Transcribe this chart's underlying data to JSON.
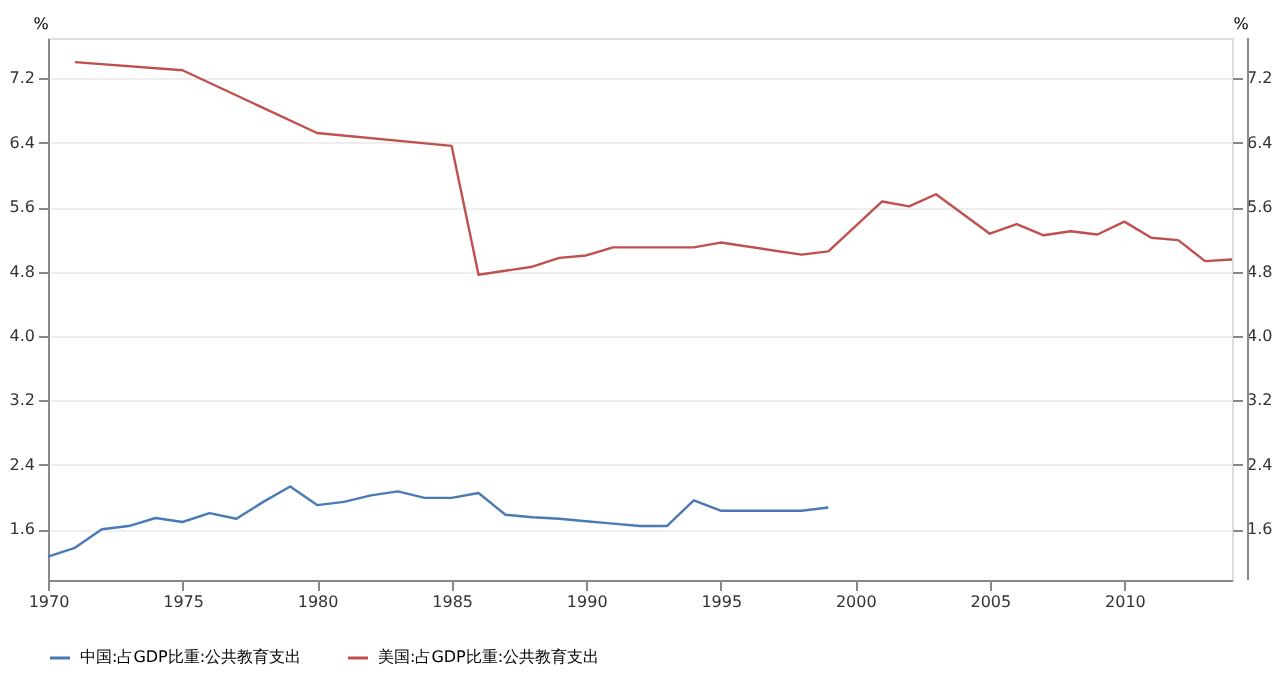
{
  "chart_data": {
    "type": "line",
    "ylabel": "%",
    "y2label": "%",
    "xlim": [
      1970,
      2014
    ],
    "xticks": [
      1970,
      1975,
      1980,
      1985,
      1990,
      1995,
      2000,
      2005,
      2010
    ],
    "ylim": [
      0.97,
      7.7
    ],
    "yticks": [
      1.6,
      2.4,
      3.2,
      {
        "value": 4,
        "label": "4.0"
      },
      4.8,
      5.6,
      6.4,
      7.2
    ],
    "y2lim": [
      0.97,
      7.7
    ],
    "y2ticks": [
      1.6,
      2.4,
      3.2,
      {
        "value": 4,
        "label": "4.0"
      },
      4.8,
      5.6,
      6.4,
      7.2
    ],
    "grid": "y",
    "legend": "bottom",
    "marker": "none",
    "line_style": "solid",
    "series": [
      {
        "name": "中国:占GDP比重:公共教育支出",
        "color": "#4a7ab5",
        "x": [
          1970,
          1971,
          1972,
          1973,
          1974,
          1975,
          1976,
          1977,
          1978,
          1979,
          1980,
          1981,
          1982,
          1983,
          1984,
          1985,
          1986,
          1987,
          1988,
          1989,
          1990,
          1991,
          1992,
          1993,
          1994,
          1995,
          1996,
          1997,
          1998,
          1999
        ],
        "values": [
          1.26,
          1.37,
          1.6,
          1.64,
          1.74,
          1.69,
          1.8,
          1.73,
          1.94,
          2.13,
          1.9,
          1.94,
          2.02,
          2.07,
          1.99,
          1.99,
          2.05,
          1.78,
          1.75,
          1.73,
          1.7,
          1.67,
          1.64,
          1.64,
          1.96,
          1.83,
          1.83,
          1.83,
          1.83,
          1.87
        ]
      },
      {
        "name": "美国:占GDP比重:公共教育支出",
        "color": "#c0504d",
        "x": [
          1971,
          1975,
          1980,
          1985,
          1986,
          1988,
          1989,
          1990,
          1991,
          1992,
          1994,
          1995,
          1998,
          1999,
          2001,
          2002,
          2003,
          2005,
          2006,
          2007,
          2008,
          2009,
          2010,
          2011,
          2012,
          2013,
          2014
        ],
        "values": [
          7.4,
          7.3,
          6.52,
          6.36,
          4.76,
          4.86,
          4.97,
          5.0,
          5.1,
          5.1,
          5.1,
          5.16,
          5.01,
          5.05,
          5.67,
          5.61,
          5.76,
          5.27,
          5.39,
          5.25,
          5.3,
          5.26,
          5.42,
          5.22,
          5.19,
          4.93,
          4.95
        ]
      }
    ]
  }
}
